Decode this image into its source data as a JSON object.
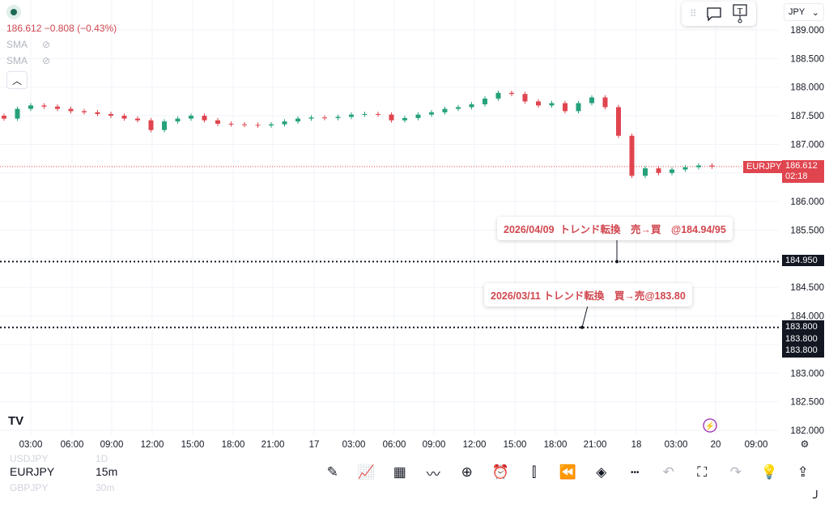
{
  "legend": {
    "quote": "186.612  −0.808 (−0.43%)",
    "indicators": [
      {
        "label": "SMA",
        "icon": "eye-off-icon"
      },
      {
        "label": "SMA",
        "icon": "eye-off-icon"
      }
    ],
    "collapse_icon": "chevron-up-icon"
  },
  "floating_toolbar": {
    "icons": [
      "drag-handle-icon",
      "comment-icon",
      "text-note-icon"
    ]
  },
  "currency": {
    "value": "JPY"
  },
  "colors": {
    "up": "#26a17b",
    "down": "#e0454f",
    "annotation": "#d0474f"
  },
  "chart_data": {
    "type": "candlestick",
    "symbol": "EURJPY",
    "interval": "15m",
    "ylim": [
      182.0,
      189.0
    ],
    "y_ticks": [
      "189.000",
      "188.500",
      "188.000",
      "187.500",
      "187.000",
      "186.500",
      "186.000",
      "185.500",
      "185.000",
      "184.500",
      "184.000",
      "183.500",
      "183.000",
      "182.500",
      "182.000"
    ],
    "x_ticks": [
      "03:00",
      "06:00",
      "09:00",
      "12:00",
      "15:00",
      "18:00",
      "21:00",
      "17",
      "03:00",
      "06:00",
      "09:00",
      "12:00",
      "15:00",
      "18:00",
      "21:00",
      "18",
      "03:00",
      "20",
      "09:00"
    ],
    "closes": [
      187.45,
      187.62,
      187.68,
      187.66,
      187.62,
      187.58,
      187.56,
      187.53,
      187.5,
      187.45,
      187.42,
      187.25,
      187.4,
      187.45,
      187.5,
      187.42,
      187.36,
      187.35,
      187.34,
      187.33,
      187.35,
      187.4,
      187.45,
      187.47,
      187.46,
      187.48,
      187.52,
      187.53,
      187.52,
      187.42,
      187.46,
      187.52,
      187.56,
      187.62,
      187.65,
      187.7,
      187.8,
      187.9,
      187.88,
      187.75,
      187.68,
      187.72,
      187.58,
      187.72,
      187.82,
      187.65,
      187.15,
      186.45,
      186.58,
      186.5,
      186.56,
      186.6,
      186.63,
      186.612
    ],
    "last_price": {
      "symbol": "EURJPY",
      "price": "186.612",
      "countdown": "02:18",
      "value": 186.612
    },
    "horizontal_lines": [
      {
        "value": 184.95,
        "label": "184.950"
      },
      {
        "value": 183.8,
        "labels": [
          "183.800",
          "183.800",
          "183.800"
        ]
      }
    ],
    "annotations": [
      {
        "text": "2026/04/09  トレンド転換　売→買　@184.94/95"
      },
      {
        "text": "2026/03/11 トレンド転換　買→売@183.80"
      }
    ]
  },
  "bottom": {
    "watchlist": [
      {
        "symbol": "USDJPY",
        "interval": "1D"
      },
      {
        "symbol": "EURJPY",
        "interval": "15m"
      },
      {
        "symbol": "GBPJPY",
        "interval": "30m"
      }
    ],
    "tools": [
      "brush-icon",
      "indicators-icon",
      "templates-icon",
      "drawings-icon",
      "add-icon",
      "alert-icon",
      "candles-icon",
      "replay-icon",
      "layers-icon",
      "more-icon",
      "undo-icon",
      "fullscreen-icon",
      "redo-icon",
      "idea-icon",
      "share-icon"
    ]
  }
}
